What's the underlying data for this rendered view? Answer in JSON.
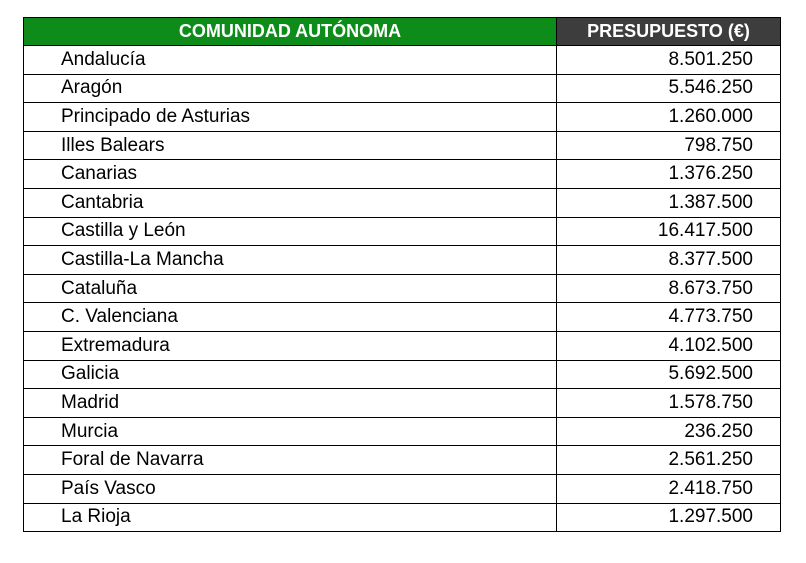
{
  "header": {
    "col_region": "COMUNIDAD AUTÓNOMA",
    "col_budget": "PRESUPUESTO (€)"
  },
  "rows": [
    {
      "name": "Andalucía",
      "value": "8.501.250"
    },
    {
      "name": "Aragón",
      "value": "5.546.250"
    },
    {
      "name": "Principado de Asturias",
      "value": "1.260.000"
    },
    {
      "name": "Illes Balears",
      "value": "798.750"
    },
    {
      "name": "Canarias",
      "value": "1.376.250"
    },
    {
      "name": "Cantabria",
      "value": "1.387.500"
    },
    {
      "name": "Castilla y León",
      "value": "16.417.500"
    },
    {
      "name": "Castilla-La Mancha",
      "value": "8.377.500"
    },
    {
      "name": "Cataluña",
      "value": "8.673.750"
    },
    {
      "name": "C. Valenciana",
      "value": "4.773.750"
    },
    {
      "name": "Extremadura",
      "value": "4.102.500"
    },
    {
      "name": "Galicia",
      "value": "5.692.500"
    },
    {
      "name": "Madrid",
      "value": "1.578.750"
    },
    {
      "name": "Murcia",
      "value": "236.250"
    },
    {
      "name": "Foral de Navarra",
      "value": "2.561.250"
    },
    {
      "name": "País Vasco",
      "value": "2.418.750"
    },
    {
      "name": "La Rioja",
      "value": "1.297.500"
    }
  ],
  "colors": {
    "header_region_bg": "#0e8c1a",
    "header_budget_bg": "#3d3d3d",
    "header_text": "#ffffff"
  }
}
